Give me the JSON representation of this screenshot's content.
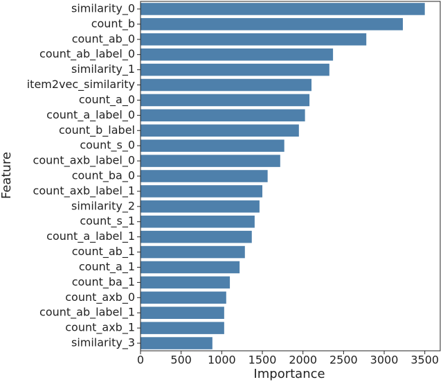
{
  "chart_data": {
    "type": "barh",
    "x_label": "Importance",
    "y_label": "Feature",
    "categories": [
      "similarity_0",
      "count_b",
      "count_ab_0",
      "count_ab_label_0",
      "similarity_1",
      "item2vec_similarity",
      "count_a_0",
      "count_a_label_0",
      "count_b_label",
      "count_s_0",
      "count_axb_label_0",
      "count_ba_0",
      "count_axb_label_1",
      "similarity_2",
      "count_s_1",
      "count_a_label_1",
      "count_ab_1",
      "count_a_1",
      "count_ba_1",
      "count_axb_0",
      "count_ab_label_1",
      "count_axb_1",
      "similarity_3"
    ],
    "values": [
      3500,
      3230,
      2780,
      2370,
      2325,
      2105,
      2080,
      2025,
      1950,
      1770,
      1720,
      1565,
      1500,
      1465,
      1405,
      1370,
      1285,
      1220,
      1100,
      1055,
      1030,
      1030,
      885
    ],
    "color": "#4e80ab",
    "xlim": [
      0,
      3690
    ],
    "xticks": [
      0,
      500,
      1000,
      1500,
      2000,
      2500,
      3000,
      3500
    ]
  }
}
